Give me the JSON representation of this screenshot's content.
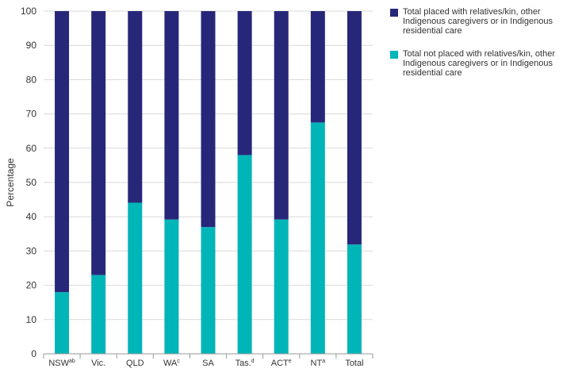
{
  "chart_data": {
    "type": "bar",
    "stacked": true,
    "ylabel": "Percentage",
    "ylim": [
      0,
      100
    ],
    "yticks": [
      0,
      10,
      20,
      30,
      40,
      50,
      60,
      70,
      80,
      90,
      100
    ],
    "grid": true,
    "legend_position": "top-right",
    "categories": [
      {
        "base": "NSW",
        "sup": "ab"
      },
      {
        "base": "Vic.",
        "sup": ""
      },
      {
        "base": "QLD",
        "sup": ""
      },
      {
        "base": "WA",
        "sup": "c"
      },
      {
        "base": "SA",
        "sup": ""
      },
      {
        "base": "Tas.",
        "sup": "d"
      },
      {
        "base": "ACT",
        "sup": "e"
      },
      {
        "base": "NT",
        "sup": "a"
      },
      {
        "base": "Total",
        "sup": ""
      }
    ],
    "series": [
      {
        "name": "Total not placed with relatives/kin, other Indigenous caregivers or in Indigenous residential care",
        "color": "#00b5b8",
        "values": [
          18.0,
          23.0,
          44.1,
          39.2,
          37.0,
          58.0,
          39.2,
          67.5,
          31.9
        ]
      },
      {
        "name": "Total placed with relatives/kin, other Indigenous caregivers or in Indigenous residential care",
        "color": "#27277a",
        "values": [
          82.0,
          77.0,
          55.9,
          60.8,
          63.0,
          42.0,
          60.8,
          32.5,
          68.1
        ]
      }
    ]
  },
  "legend": [
    {
      "label": "Total placed with relatives/kin, other Indigenous caregivers or in Indigenous residential care",
      "color": "#27277a"
    },
    {
      "label": "Total not placed with relatives/kin, other Indigenous caregivers or in Indigenous residential care",
      "color": "#00b5b8"
    }
  ],
  "colors": {
    "grid": "#d9d9d9",
    "axis": "#999999",
    "text": "#333333"
  }
}
